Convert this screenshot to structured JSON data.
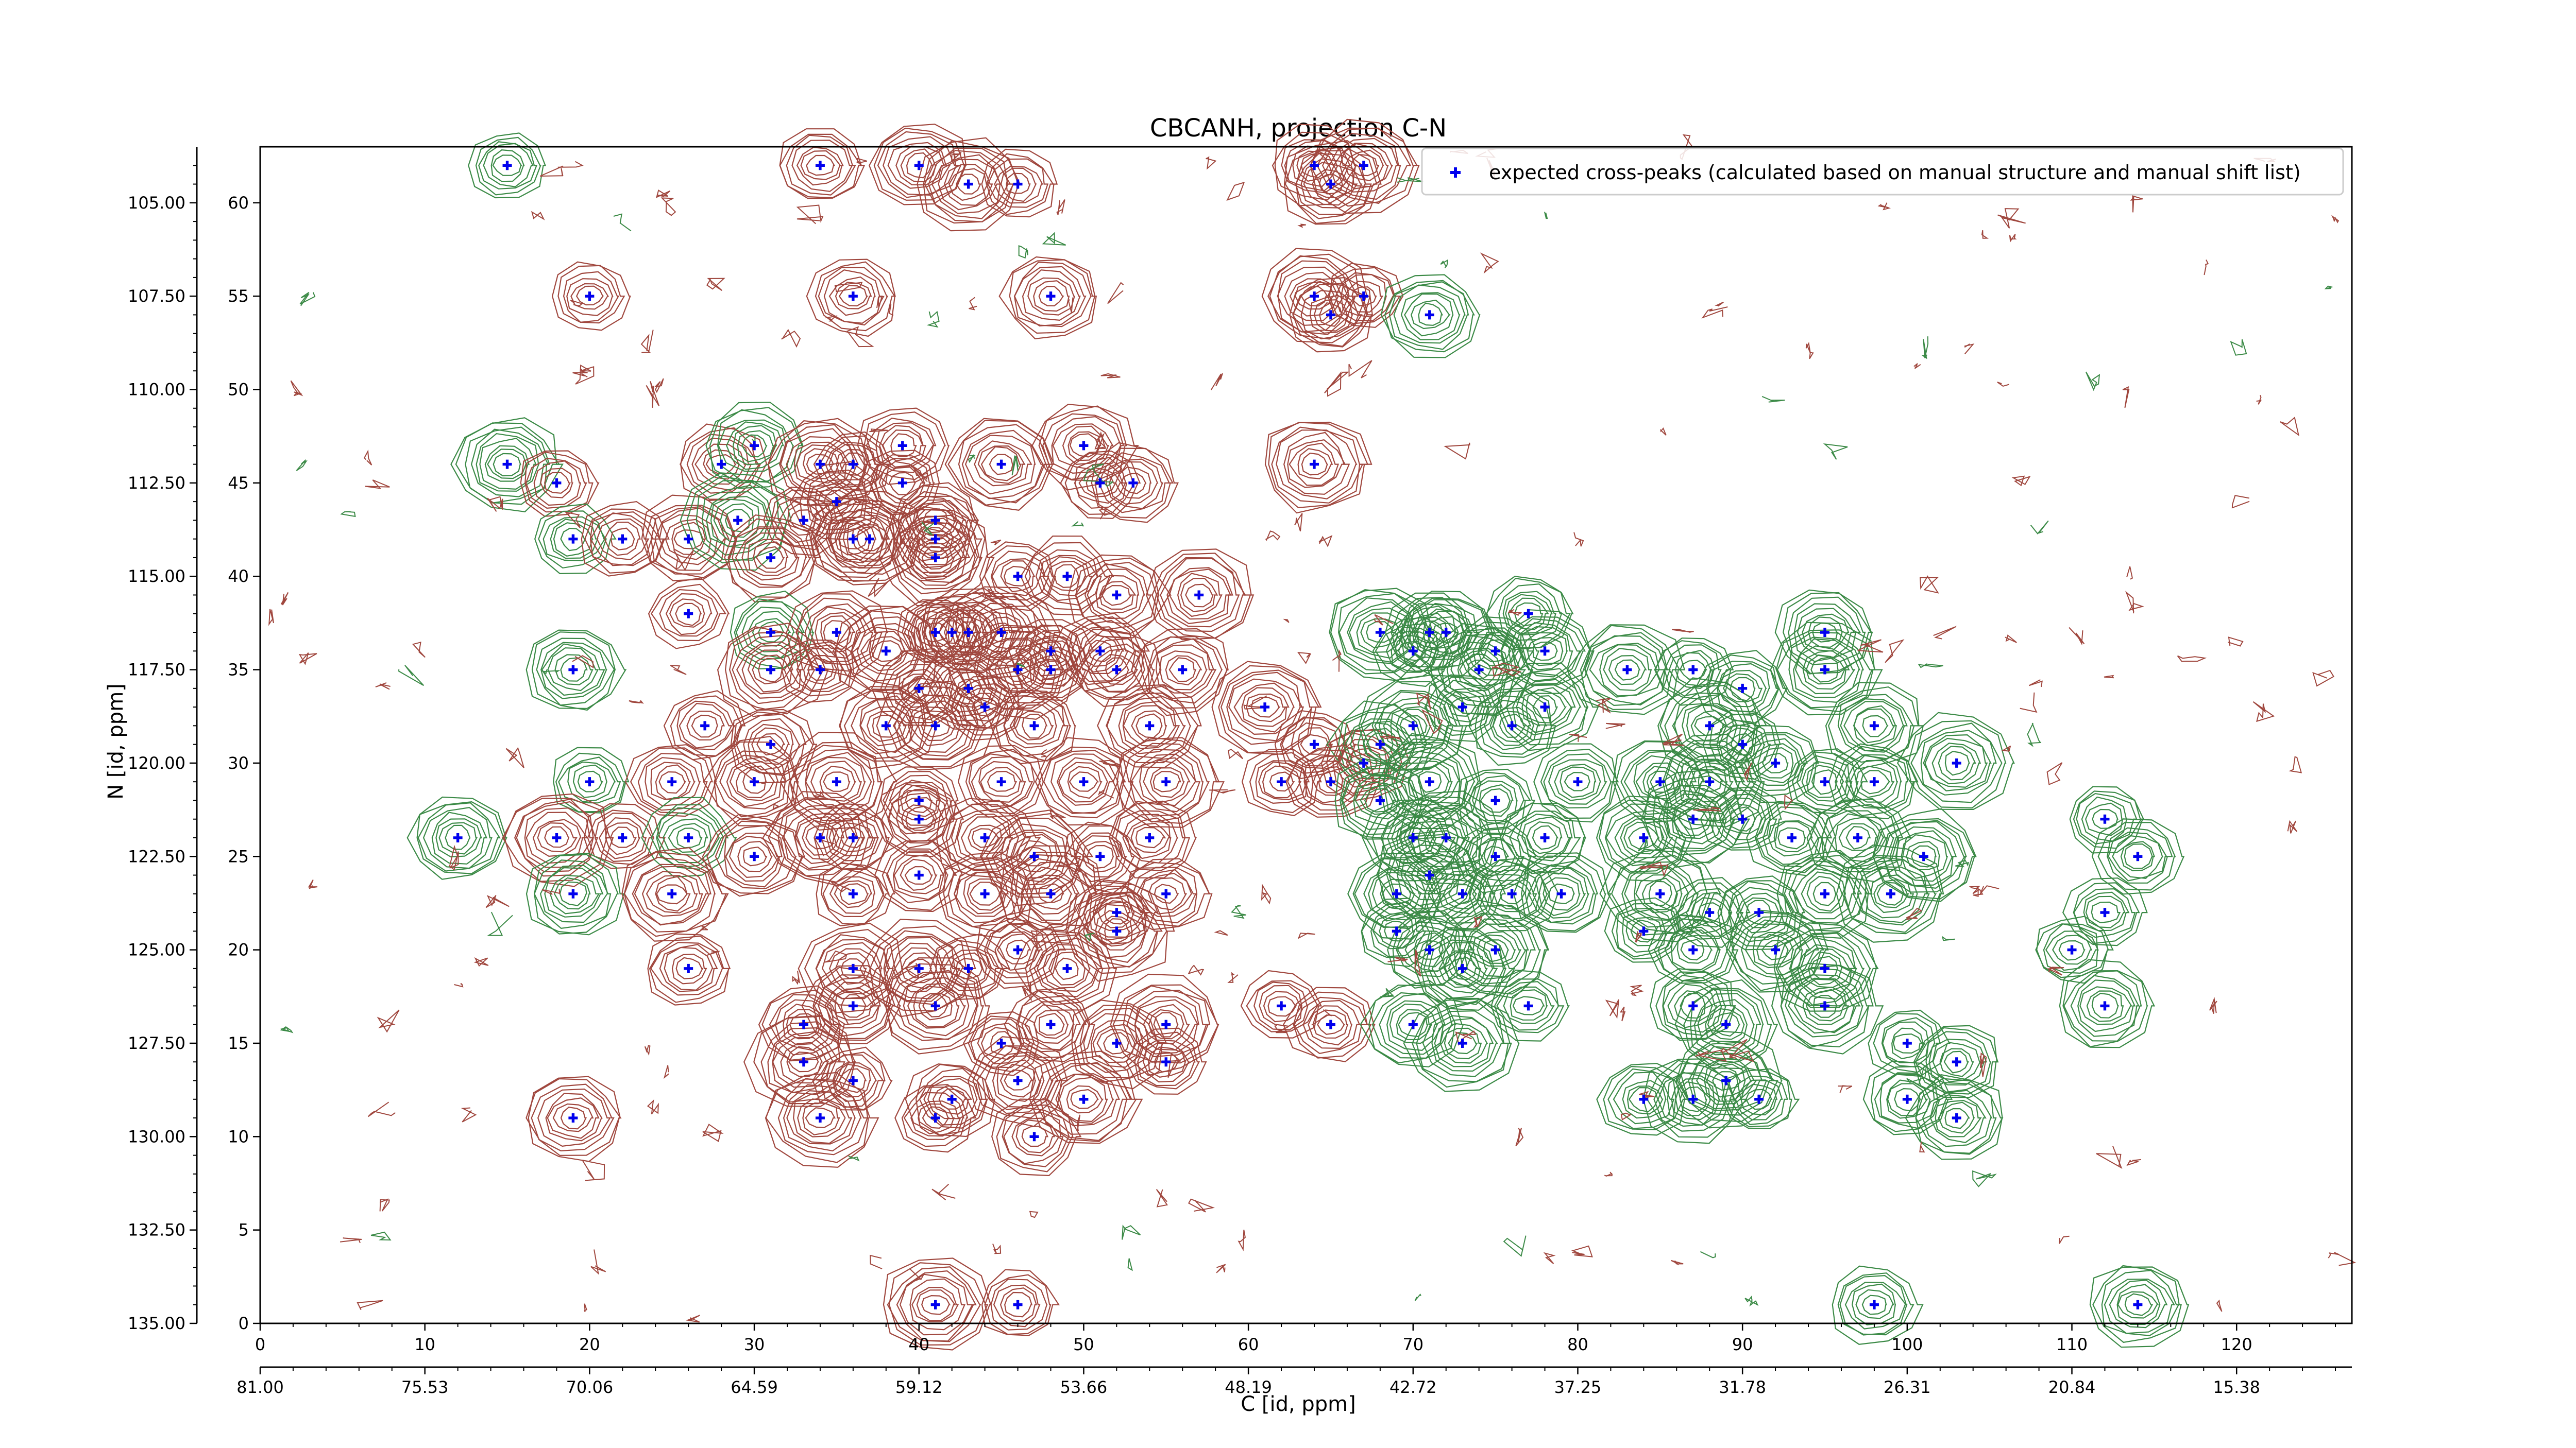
{
  "chart_data": {
    "type": "scatter",
    "title": "CBCANH, projection C-N",
    "xlabel": "C [id, ppm]",
    "ylabel": "N [id, ppm]",
    "x_index_range": [
      0,
      127
    ],
    "y_index_range": [
      0,
      63
    ],
    "x_index_ticks": [
      "0",
      "10",
      "20",
      "30",
      "40",
      "50",
      "60",
      "70",
      "80",
      "90",
      "100",
      "110",
      "120"
    ],
    "x_ppm_ticks": [
      "81.00",
      "75.53",
      "70.06",
      "64.59",
      "59.12",
      "53.66",
      "48.19",
      "42.72",
      "37.25",
      "31.78",
      "26.31",
      "20.84",
      "15.38"
    ],
    "y_index_ticks": [
      "0",
      "5",
      "10",
      "15",
      "20",
      "25",
      "30",
      "35",
      "40",
      "45",
      "50",
      "55",
      "60"
    ],
    "y_ppm_ticks": [
      "135.00",
      "132.50",
      "130.00",
      "127.50",
      "125.00",
      "122.50",
      "120.00",
      "117.50",
      "115.00",
      "112.50",
      "110.00",
      "107.50",
      "105.00"
    ],
    "legend": {
      "label": "expected cross-peaks (calculated based on manual structure and manual shift list)",
      "loc": "upper right"
    },
    "colors": {
      "marker": "#0000ee",
      "positive_contour": "#a0473e",
      "negative_contour": "#3b8a46"
    },
    "series": [
      {
        "name": "expected cross-peaks (calculated based on manual structure and manual shift list)",
        "points": [
          [
            15,
            62
          ],
          [
            34,
            62
          ],
          [
            40,
            62
          ],
          [
            43,
            61
          ],
          [
            46,
            61
          ],
          [
            64,
            62
          ],
          [
            65,
            61
          ],
          [
            67,
            62
          ],
          [
            20,
            55
          ],
          [
            36,
            55
          ],
          [
            48,
            55
          ],
          [
            64,
            55
          ],
          [
            67,
            55
          ],
          [
            65,
            54
          ],
          [
            71,
            54
          ],
          [
            15,
            46
          ],
          [
            18,
            45
          ],
          [
            28,
            46
          ],
          [
            30,
            47
          ],
          [
            34,
            46
          ],
          [
            36,
            46
          ],
          [
            39,
            47
          ],
          [
            50,
            47
          ],
          [
            64,
            46
          ],
          [
            19,
            42
          ],
          [
            22,
            42
          ],
          [
            26,
            42
          ],
          [
            29,
            43
          ],
          [
            33,
            43
          ],
          [
            35,
            44
          ],
          [
            36,
            42
          ],
          [
            37,
            42
          ],
          [
            39,
            45
          ],
          [
            41,
            43
          ],
          [
            41,
            42
          ],
          [
            45,
            46
          ],
          [
            51,
            45
          ],
          [
            53,
            45
          ],
          [
            31,
            41
          ],
          [
            41,
            41
          ],
          [
            46,
            40
          ],
          [
            49,
            40
          ],
          [
            52,
            39
          ],
          [
            57,
            39
          ],
          [
            26,
            38
          ],
          [
            31,
            37
          ],
          [
            35,
            37
          ],
          [
            38,
            36
          ],
          [
            41,
            37
          ],
          [
            42,
            37
          ],
          [
            43,
            37
          ],
          [
            45,
            37
          ],
          [
            48,
            36
          ],
          [
            51,
            36
          ],
          [
            19,
            35
          ],
          [
            31,
            35
          ],
          [
            34,
            35
          ],
          [
            40,
            34
          ],
          [
            43,
            34
          ],
          [
            46,
            35
          ],
          [
            48,
            35
          ],
          [
            52,
            35
          ],
          [
            56,
            35
          ],
          [
            68,
            37
          ],
          [
            70,
            36
          ],
          [
            71,
            37
          ],
          [
            72,
            37
          ],
          [
            74,
            35
          ],
          [
            75,
            36
          ],
          [
            77,
            38
          ],
          [
            78,
            36
          ],
          [
            83,
            35
          ],
          [
            87,
            35
          ],
          [
            90,
            34
          ],
          [
            95,
            37
          ],
          [
            95,
            35
          ],
          [
            27,
            32
          ],
          [
            31,
            31
          ],
          [
            38,
            32
          ],
          [
            41,
            32
          ],
          [
            44,
            33
          ],
          [
            47,
            32
          ],
          [
            54,
            32
          ],
          [
            61,
            33
          ],
          [
            64,
            31
          ],
          [
            67,
            30
          ],
          [
            68,
            31
          ],
          [
            70,
            32
          ],
          [
            73,
            33
          ],
          [
            76,
            32
          ],
          [
            78,
            33
          ],
          [
            88,
            32
          ],
          [
            90,
            31
          ],
          [
            92,
            30
          ],
          [
            98,
            32
          ],
          [
            103,
            30
          ],
          [
            20,
            29
          ],
          [
            25,
            29
          ],
          [
            30,
            29
          ],
          [
            35,
            29
          ],
          [
            40,
            28
          ],
          [
            45,
            29
          ],
          [
            50,
            29
          ],
          [
            55,
            29
          ],
          [
            62,
            29
          ],
          [
            65,
            29
          ],
          [
            68,
            28
          ],
          [
            71,
            29
          ],
          [
            75,
            28
          ],
          [
            80,
            29
          ],
          [
            85,
            29
          ],
          [
            88,
            29
          ],
          [
            95,
            29
          ],
          [
            98,
            29
          ],
          [
            12,
            26
          ],
          [
            18,
            26
          ],
          [
            22,
            26
          ],
          [
            26,
            26
          ],
          [
            30,
            25
          ],
          [
            34,
            26
          ],
          [
            36,
            26
          ],
          [
            40,
            27
          ],
          [
            44,
            26
          ],
          [
            47,
            25
          ],
          [
            51,
            25
          ],
          [
            54,
            26
          ],
          [
            70,
            26
          ],
          [
            72,
            26
          ],
          [
            75,
            25
          ],
          [
            78,
            26
          ],
          [
            84,
            26
          ],
          [
            87,
            27
          ],
          [
            90,
            27
          ],
          [
            93,
            26
          ],
          [
            97,
            26
          ],
          [
            101,
            25
          ],
          [
            112,
            27
          ],
          [
            114,
            25
          ],
          [
            19,
            23
          ],
          [
            25,
            23
          ],
          [
            36,
            23
          ],
          [
            40,
            24
          ],
          [
            44,
            23
          ],
          [
            48,
            23
          ],
          [
            52,
            22
          ],
          [
            55,
            23
          ],
          [
            69,
            23
          ],
          [
            71,
            24
          ],
          [
            73,
            23
          ],
          [
            76,
            23
          ],
          [
            79,
            23
          ],
          [
            85,
            23
          ],
          [
            88,
            22
          ],
          [
            91,
            22
          ],
          [
            95,
            23
          ],
          [
            99,
            23
          ],
          [
            112,
            22
          ],
          [
            26,
            19
          ],
          [
            36,
            19
          ],
          [
            40,
            19
          ],
          [
            43,
            19
          ],
          [
            46,
            20
          ],
          [
            49,
            19
          ],
          [
            52,
            21
          ],
          [
            69,
            21
          ],
          [
            71,
            20
          ],
          [
            73,
            19
          ],
          [
            75,
            20
          ],
          [
            84,
            21
          ],
          [
            87,
            20
          ],
          [
            92,
            20
          ],
          [
            95,
            19
          ],
          [
            110,
            20
          ],
          [
            33,
            16
          ],
          [
            36,
            17
          ],
          [
            41,
            17
          ],
          [
            45,
            15
          ],
          [
            48,
            16
          ],
          [
            52,
            15
          ],
          [
            55,
            16
          ],
          [
            62,
            17
          ],
          [
            65,
            16
          ],
          [
            70,
            16
          ],
          [
            73,
            15
          ],
          [
            77,
            17
          ],
          [
            87,
            17
          ],
          [
            89,
            16
          ],
          [
            95,
            17
          ],
          [
            100,
            15
          ],
          [
            103,
            14
          ],
          [
            112,
            17
          ],
          [
            33,
            14
          ],
          [
            36,
            13
          ],
          [
            42,
            12
          ],
          [
            46,
            13
          ],
          [
            50,
            12
          ],
          [
            55,
            14
          ],
          [
            84,
            12
          ],
          [
            87,
            12
          ],
          [
            89,
            13
          ],
          [
            91,
            12
          ],
          [
            100,
            12
          ],
          [
            19,
            11
          ],
          [
            34,
            11
          ],
          [
            41,
            11
          ],
          [
            47,
            10
          ],
          [
            103,
            11
          ],
          [
            41,
            1
          ],
          [
            46,
            1
          ],
          [
            98,
            1
          ],
          [
            114,
            1
          ]
        ]
      }
    ]
  }
}
